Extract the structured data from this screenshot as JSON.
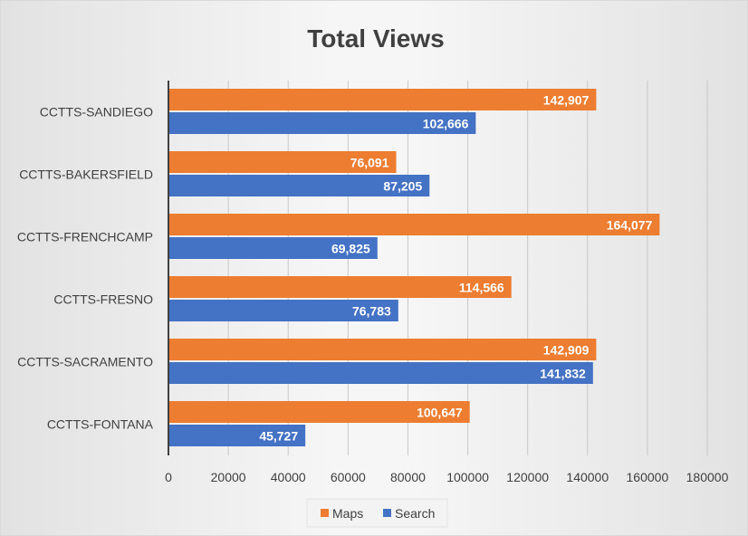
{
  "chart_data": {
    "type": "bar",
    "orientation": "horizontal",
    "title": "Total Views",
    "categories": [
      "CCTTS-SANDIEGO",
      "CCTTS-BAKERSFIELD",
      "CCTTS-FRENCHCAMP",
      "CCTTS-FRESNO",
      "CCTTS-SACRAMENTO",
      "CCTTS-FONTANA"
    ],
    "series": [
      {
        "name": "Maps",
        "color": "#ED7D31",
        "values": [
          142907,
          76091,
          164077,
          114566,
          142909,
          100647
        ],
        "labels": [
          "142,907",
          "76,091",
          "164,077",
          "114,566",
          "142,909",
          "100,647"
        ]
      },
      {
        "name": "Search",
        "color": "#4472C4",
        "values": [
          102666,
          87205,
          69825,
          76783,
          141832,
          45727
        ],
        "labels": [
          "102,666",
          "87,205",
          "69,825",
          "76,783",
          "141,832",
          "45,727"
        ]
      }
    ],
    "xlim": [
      0,
      180000
    ],
    "xticks": [
      0,
      20000,
      40000,
      60000,
      80000,
      100000,
      120000,
      140000,
      160000,
      180000
    ],
    "xtick_labels": [
      "0",
      "20000",
      "40000",
      "60000",
      "80000",
      "100000",
      "120000",
      "140000",
      "160000",
      "180000"
    ],
    "grid": true,
    "legend_position": "bottom",
    "data_labels": "inside-end"
  }
}
